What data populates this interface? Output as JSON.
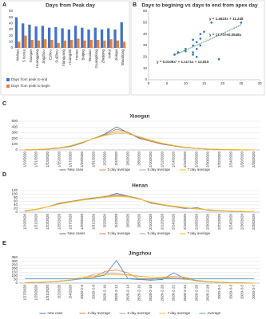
{
  "chart_data": [
    {
      "type": "bar",
      "panel": "A",
      "title": "Days from Peak day",
      "categories": [
        "Wuhan",
        "S Korea",
        "Xiaogan",
        "Huanggang",
        "Jingzhou",
        "Ezhou",
        "SuiZhou",
        "Xiangyang",
        "Huangshi",
        "Henan",
        "Beijing",
        "Wuxian",
        "Guangdong",
        "Zhejiang",
        "Anhui",
        "Jiangxi",
        "Shandong"
      ],
      "series": [
        {
          "name": "Days from peak to end",
          "color": "#4472c4",
          "values": [
            50,
            40,
            38,
            35,
            36,
            33,
            34,
            32,
            30,
            36,
            33,
            30,
            33,
            30,
            32,
            30,
            42
          ]
        },
        {
          "name": "Days from peak to begin",
          "color": "#ed7d31",
          "values": [
            10,
            20,
            13,
            12,
            14,
            13,
            8,
            12,
            13,
            15,
            12,
            13,
            13,
            12,
            14,
            12,
            10
          ]
        }
      ],
      "ylim": [
        0,
        60
      ],
      "yticks": [
        0,
        10,
        20,
        30,
        40,
        50,
        60
      ],
      "grid": false
    },
    {
      "type": "scatter",
      "panel": "B",
      "title": "Days to begining vs days to end from apex day",
      "x": [
        7,
        8,
        10,
        10,
        12,
        12,
        12,
        12,
        13,
        13,
        13,
        14,
        14,
        14,
        15,
        17,
        19,
        25
      ],
      "values": [
        22,
        24,
        25,
        27,
        30,
        35,
        22,
        24,
        33,
        27,
        20,
        36,
        40,
        30,
        42,
        50,
        18,
        50
      ],
      "color": "#2e75b6",
      "xlim": [
        0,
        30
      ],
      "xticks": [
        0,
        5,
        10,
        15,
        20,
        25,
        30
      ],
      "ylim": [
        0,
        60
      ],
      "yticks": [
        0,
        10,
        20,
        30,
        40,
        50,
        60
      ],
      "trend_lines": [
        {
          "color": "#2e75b6",
          "x": [
            7,
            25
          ],
          "values": [
            21.5,
            47.8
          ]
        },
        {
          "color": "#70ad47",
          "x": [
            7,
            13,
            19,
            25
          ],
          "values": [
            22.1,
            30.1,
            38.8,
            48.4
          ]
        }
      ],
      "annotations": [
        {
          "text": "y = 1.4623x + 11.248",
          "color": "#2e75b6"
        },
        {
          "text": "y = 17.707e0.0548x",
          "color": "#2e75b6"
        },
        {
          "text": "y = 0.0106x² + 1.1171x + 13.819",
          "color": "#70ad47"
        }
      ],
      "grid": false
    },
    {
      "type": "line",
      "panel": "C",
      "title": "Xiaogan",
      "categories": [
        "1/19/2020",
        "1/21/2020",
        "1/23/2020",
        "1/25/2020",
        "1/27/2020",
        "1/29/2020",
        "1/31/2020",
        "2/2/2020",
        "2/4/2020",
        "2/6/2020",
        "2/8/2020",
        "2/10/2020",
        "2/12/2020",
        "2/14/2020",
        "2/16/2020",
        "2/18/2020",
        "2/20/2020",
        "2/22/2020",
        "2/24/2020",
        "2/26/2020",
        "2/28/2020"
      ],
      "series": [
        {
          "name": "New case",
          "color": "#4472c4",
          "values": [
            2,
            5,
            15,
            30,
            60,
            120,
            200,
            280,
            400,
            300,
            200,
            150,
            100,
            70,
            40,
            25,
            15,
            8,
            4,
            2,
            1
          ]
        },
        {
          "name": "3 day average",
          "color": "#ed7d31",
          "values": [
            2,
            6,
            16,
            32,
            62,
            125,
            200,
            270,
            360,
            310,
            210,
            150,
            105,
            72,
            42,
            26,
            15,
            9,
            4,
            2,
            1
          ]
        },
        {
          "name": "5 day average",
          "color": "#a5a5a5",
          "values": [
            3,
            7,
            18,
            35,
            70,
            130,
            200,
            260,
            320,
            300,
            220,
            160,
            110,
            75,
            45,
            28,
            17,
            10,
            5,
            2,
            1
          ]
        },
        {
          "name": "7 day average",
          "color": "#ffc000",
          "values": [
            4,
            8,
            20,
            40,
            75,
            135,
            195,
            250,
            290,
            280,
            230,
            170,
            120,
            80,
            50,
            30,
            18,
            11,
            6,
            3,
            1
          ]
        }
      ],
      "ylim": [
        0,
        500
      ],
      "yticks": [
        0,
        100,
        200,
        300,
        400,
        500
      ],
      "grid": true
    },
    {
      "type": "line",
      "panel": "D",
      "title": "Henan",
      "categories": [
        "1/19/2020",
        "1/21/2020",
        "1/23/2020",
        "1/25/2020",
        "1/27/2020",
        "1/29/2020",
        "1/31/2020",
        "2/2/2020",
        "2/4/2020",
        "2/6/2020",
        "2/8/2020",
        "2/10/2020",
        "2/12/2020",
        "2/14/2020",
        "2/16/2020",
        "2/18/2020",
        "2/20/2020",
        "2/22/2020",
        "2/24/2020",
        "2/26/2020",
        "2/28/2020"
      ],
      "series": [
        {
          "name": "New cases",
          "color": "#4472c4",
          "values": [
            5,
            15,
            30,
            50,
            60,
            70,
            80,
            85,
            105,
            90,
            75,
            50,
            40,
            30,
            20,
            25,
            10,
            8,
            5,
            3,
            2
          ]
        },
        {
          "name": "3 day average",
          "color": "#ed7d31",
          "values": [
            6,
            15,
            30,
            48,
            60,
            70,
            78,
            88,
            98,
            90,
            75,
            52,
            40,
            30,
            22,
            20,
            12,
            8,
            5,
            3,
            2
          ]
        },
        {
          "name": "5 day average",
          "color": "#a5a5a5",
          "values": [
            7,
            16,
            30,
            46,
            58,
            68,
            76,
            86,
            92,
            88,
            74,
            54,
            42,
            32,
            24,
            18,
            13,
            9,
            6,
            3,
            2
          ]
        },
        {
          "name": "7 day average",
          "color": "#ffc000",
          "values": [
            8,
            17,
            30,
            44,
            56,
            66,
            74,
            82,
            88,
            84,
            72,
            56,
            44,
            34,
            26,
            20,
            14,
            10,
            6,
            4,
            2
          ]
        }
      ],
      "ylim": [
        0,
        120
      ],
      "yticks": [
        0,
        20,
        40,
        60,
        80,
        100,
        120
      ],
      "grid": true
    },
    {
      "type": "line",
      "panel": "E",
      "title": "Jingzhou",
      "categories": [
        "1/27/2020",
        "1/29/2020",
        "1/31/2020",
        "2/2/2020",
        "2/4/2020",
        "2020-2-6",
        "2020-2-8",
        "2020-2-10",
        "2020-2-12",
        "2020-2-14",
        "2020-2-16",
        "2020-2-18",
        "2020-2-20",
        "2020-2-22",
        "2020-2-24",
        "2020-2-26",
        "2020-2-28",
        "2020-3-1",
        "2020-3-3",
        "2020-3-5",
        "2020-3-7"
      ],
      "series": [
        {
          "name": "new case",
          "color": "#4472c4",
          "values": [
            5,
            10,
            15,
            25,
            40,
            60,
            80,
            110,
            310,
            60,
            50,
            40,
            50,
            140,
            60,
            30,
            20,
            10,
            5,
            3,
            1
          ]
        },
        {
          "name": "3 day average",
          "color": "#ed7d31",
          "values": [
            5,
            10,
            16,
            26,
            42,
            60,
            82,
            160,
            180,
            140,
            55,
            48,
            80,
            90,
            80,
            35,
            20,
            11,
            6,
            3,
            1
          ]
        },
        {
          "name": "5 day average",
          "color": "#a5a5a5",
          "values": [
            6,
            11,
            17,
            28,
            44,
            62,
            120,
            140,
            130,
            115,
            95,
            80,
            75,
            70,
            60,
            40,
            22,
            12,
            6,
            3,
            1
          ]
        },
        {
          "name": "7 day average",
          "color": "#ffc000",
          "values": [
            7,
            12,
            18,
            30,
            46,
            80,
            100,
            115,
            120,
            110,
            90,
            80,
            72,
            62,
            50,
            40,
            24,
            13,
            7,
            3,
            1
          ]
        },
        {
          "name": "Average",
          "color": "#5b9bd5",
          "values": [
            61,
            61,
            61,
            61,
            61,
            61,
            61,
            61,
            61,
            61,
            61,
            61,
            61,
            61,
            61,
            61,
            61,
            61,
            61,
            61,
            61
          ]
        }
      ],
      "ylim": [
        0,
        350
      ],
      "yticks": [
        0,
        50,
        100,
        150,
        200,
        250,
        300,
        350
      ],
      "grid": true
    }
  ]
}
